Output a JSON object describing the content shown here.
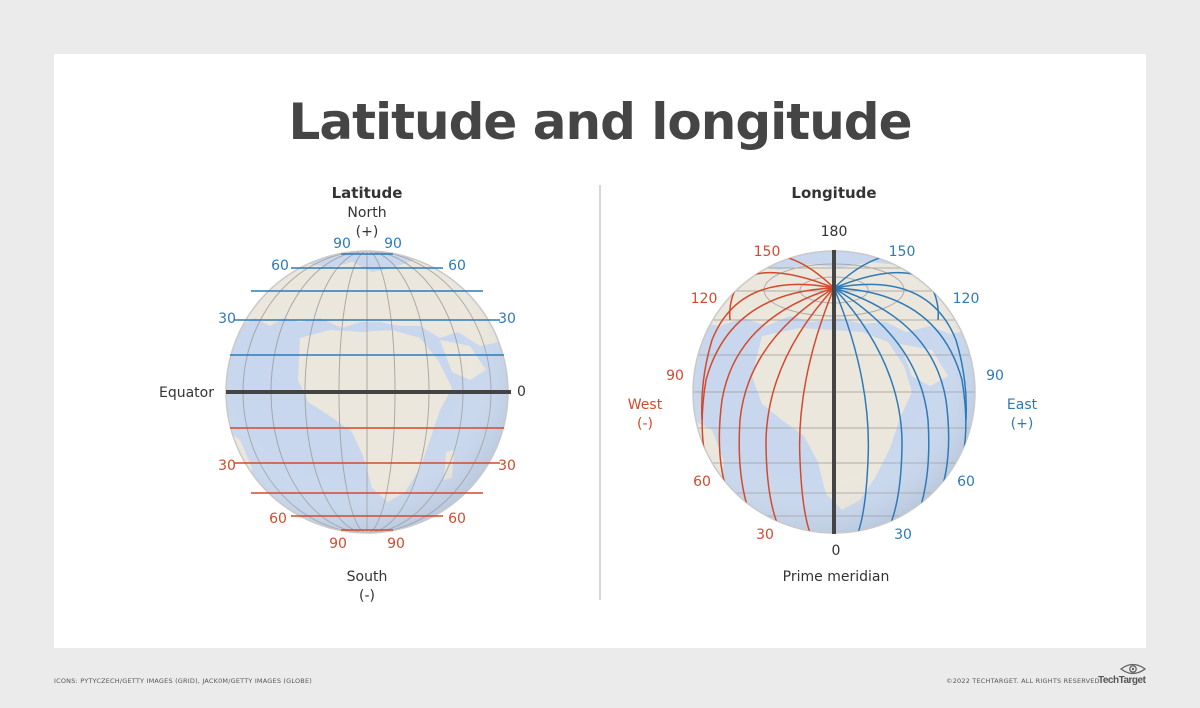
{
  "title": "Latitude and longitude",
  "colors": {
    "positive": "#2e7ab8",
    "negative": "#d24a2e",
    "dark": "#444444",
    "ocean": "#c8d7ee",
    "land": "#ece7dc"
  },
  "latitude": {
    "heading": "Latitude",
    "north": "North",
    "north_sign": "(+)",
    "south": "South",
    "south_sign": "(-)",
    "equator": "Equator",
    "zero": "0",
    "north_labels": {
      "top_left": "90",
      "top_right": "90",
      "sixty_left": "60",
      "sixty_right": "60",
      "thirty_left": "30",
      "thirty_right": "30"
    },
    "south_labels": {
      "thirty_left": "30",
      "thirty_right": "30",
      "sixty_left": "60",
      "sixty_right": "60",
      "bottom_left": "90",
      "bottom_right": "90"
    }
  },
  "longitude": {
    "heading": "Longitude",
    "top": "180",
    "bottom": "0",
    "prime_meridian": "Prime meridian",
    "west": "West",
    "west_sign": "(-)",
    "east": "East",
    "east_sign": "(+)",
    "west_labels": {
      "l150": "150",
      "l120": "120",
      "l90": "90",
      "l60": "60",
      "l30": "30"
    },
    "east_labels": {
      "l150": "150",
      "l120": "120",
      "l90": "90",
      "l60": "60",
      "l30": "30"
    }
  },
  "footer": {
    "credits": "ICONS: PYTYCZECH/GETTY IMAGES (GRID), JACK0M/GETTY IMAGES (GLOBE)",
    "copyright": "©2022 TECHTARGET. ALL RIGHTS RESERVED",
    "logo": "TechTarget"
  }
}
